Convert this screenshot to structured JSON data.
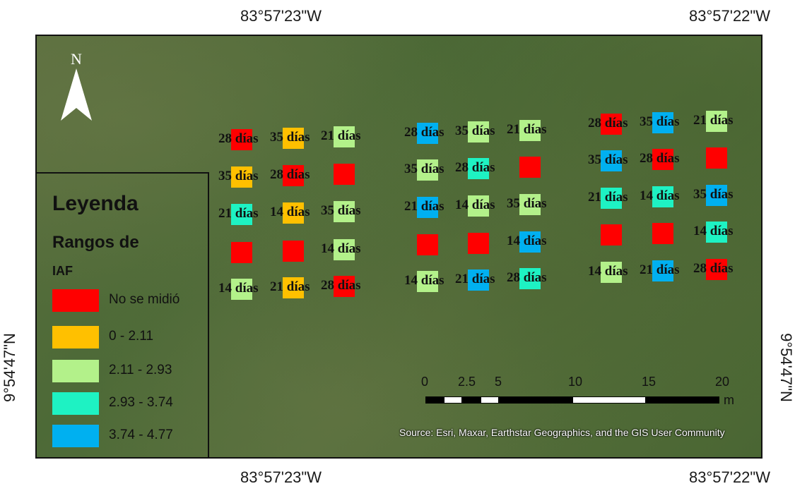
{
  "coords": {
    "top_left": "83°57'23\"W",
    "top_right": "83°57'22\"W",
    "bottom_left": "83°57'23\"W",
    "bottom_right": "83°57'22\"W",
    "left": "9°54'47\"N",
    "right": "9°54'47\"N"
  },
  "north_arrow": {
    "label": "N",
    "icon": "north-arrow-icon"
  },
  "legend": {
    "title": "Leyenda",
    "subtitle": "Rangos de",
    "field": "IAF",
    "items": [
      {
        "label": "No se midió",
        "color": "#ff0000"
      },
      {
        "label": "0 - 2.11",
        "color": "#ffc000"
      },
      {
        "label": "2.11 - 2.93",
        "color": "#b3f18a"
      },
      {
        "label": "2.93 - 3.74",
        "color": "#1ef2c3"
      },
      {
        "label": "3.74 - 4.77",
        "color": "#00b0f0"
      }
    ]
  },
  "plots": [
    {
      "class": 0,
      "label": "28 días"
    },
    {
      "class": 1,
      "label": "35 días"
    },
    {
      "class": 2,
      "label": "21 días"
    },
    {
      "class": 1,
      "label": "35 días"
    },
    {
      "class": 0,
      "label": "28 días"
    },
    {
      "class": 0,
      "label": ""
    },
    {
      "class": 3,
      "label": "21 días"
    },
    {
      "class": 1,
      "label": "14 días"
    },
    {
      "class": 2,
      "label": "35 días"
    },
    {
      "class": 0,
      "label": ""
    },
    {
      "class": 0,
      "label": ""
    },
    {
      "class": 2,
      "label": "14 días"
    },
    {
      "class": 2,
      "label": "14 días"
    },
    {
      "class": 1,
      "label": "21 días"
    },
    {
      "class": 0,
      "label": "28 días"
    },
    {
      "class": 4,
      "label": "28 días"
    },
    {
      "class": 2,
      "label": "35 días"
    },
    {
      "class": 2,
      "label": "21 días"
    },
    {
      "class": 2,
      "label": "35 días"
    },
    {
      "class": 3,
      "label": "28 días"
    },
    {
      "class": 0,
      "label": ""
    },
    {
      "class": 4,
      "label": "21 días"
    },
    {
      "class": 2,
      "label": "14 días"
    },
    {
      "class": 2,
      "label": "35 días"
    },
    {
      "class": 0,
      "label": ""
    },
    {
      "class": 0,
      "label": ""
    },
    {
      "class": 4,
      "label": "14 días"
    },
    {
      "class": 2,
      "label": "14 días"
    },
    {
      "class": 4,
      "label": "21 días"
    },
    {
      "class": 3,
      "label": "28 días"
    },
    {
      "class": 0,
      "label": "28 días"
    },
    {
      "class": 4,
      "label": "35 días"
    },
    {
      "class": 2,
      "label": "21 días"
    },
    {
      "class": 4,
      "label": "35 días"
    },
    {
      "class": 0,
      "label": "28 días"
    },
    {
      "class": 0,
      "label": ""
    },
    {
      "class": 3,
      "label": "21 días"
    },
    {
      "class": 3,
      "label": "14 días"
    },
    {
      "class": 4,
      "label": "35 días"
    },
    {
      "class": 0,
      "label": ""
    },
    {
      "class": 0,
      "label": ""
    },
    {
      "class": 3,
      "label": "14 días"
    },
    {
      "class": 2,
      "label": "14 días"
    },
    {
      "class": 4,
      "label": "21 días"
    },
    {
      "class": 0,
      "label": "28 días"
    }
  ],
  "scale": {
    "ticks": [
      "0",
      "2.5",
      "5",
      "10",
      "15",
      "20"
    ],
    "unit": "m"
  },
  "source": "Source: Esri, Maxar, Earthstar Geographics, and the GIS User Community"
}
